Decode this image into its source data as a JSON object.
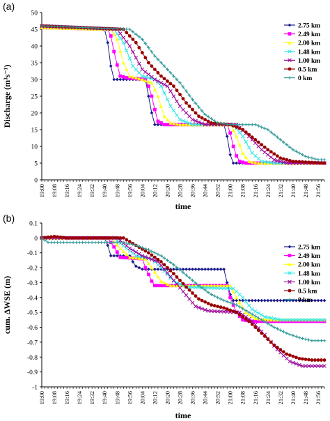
{
  "chart_data": [
    {
      "type": "line",
      "panel_label": "(a)",
      "xlabel": "time",
      "ylabel": "Discharge (m³s⁻¹)",
      "ylim": [
        0,
        50
      ],
      "yticks": [
        0,
        5,
        10,
        15,
        20,
        25,
        30,
        35,
        40,
        45,
        50
      ],
      "x_tick_labels": [
        "19:00",
        "19:08",
        "19:16",
        "19:24",
        "19:32",
        "19:40",
        "19:48",
        "19:56",
        "20:04",
        "20:12",
        "20:20",
        "20:28",
        "20:36",
        "20:44",
        "20:52",
        "21:00",
        "21:08",
        "21:16",
        "21:24",
        "21:32",
        "21:40",
        "21:48",
        "21:56"
      ],
      "grid": false,
      "legend_position": "top-right",
      "series": [
        {
          "name": "2.75 km",
          "color": "#1a1a8c",
          "marker": "diamond",
          "points": [
            [
              "19:00",
              45.5
            ],
            [
              "19:40",
              45
            ],
            [
              "19:42",
              41
            ],
            [
              "19:44",
              34
            ],
            [
              "19:46",
              30
            ],
            [
              "20:06",
              30
            ],
            [
              "20:08",
              25
            ],
            [
              "20:10",
              20
            ],
            [
              "20:12",
              16.5
            ],
            [
              "20:56",
              16.5
            ],
            [
              "20:58",
              13
            ],
            [
              "21:00",
              7.5
            ],
            [
              "21:02",
              5
            ],
            [
              "22:00",
              5
            ]
          ]
        },
        {
          "name": "2.49 km",
          "color": "#ff00ff",
          "marker": "square",
          "points": [
            [
              "19:00",
              45.5
            ],
            [
              "19:42",
              45
            ],
            [
              "19:44",
              43
            ],
            [
              "19:47",
              36
            ],
            [
              "19:50",
              31
            ],
            [
              "19:54",
              30.5
            ],
            [
              "20:06",
              30
            ],
            [
              "20:09",
              27
            ],
            [
              "20:12",
              21
            ],
            [
              "20:14",
              17.5
            ],
            [
              "20:18",
              16.5
            ],
            [
              "20:58",
              16.5
            ],
            [
              "21:00",
              14
            ],
            [
              "21:03",
              8
            ],
            [
              "21:06",
              5.5
            ],
            [
              "21:10",
              5
            ],
            [
              "22:00",
              5
            ]
          ]
        },
        {
          "name": "2.00 km",
          "color": "#ffff00",
          "marker": "triangle",
          "points": [
            [
              "19:00",
              45.5
            ],
            [
              "19:44",
              45
            ],
            [
              "19:48",
              42
            ],
            [
              "19:52",
              35
            ],
            [
              "19:56",
              31
            ],
            [
              "20:04",
              30
            ],
            [
              "20:10",
              29
            ],
            [
              "20:14",
              25
            ],
            [
              "20:18",
              19
            ],
            [
              "20:22",
              17
            ],
            [
              "20:28",
              16.5
            ],
            [
              "21:00",
              16.5
            ],
            [
              "21:04",
              13
            ],
            [
              "21:08",
              8
            ],
            [
              "21:12",
              5.5
            ],
            [
              "21:18",
              5
            ],
            [
              "22:00",
              5
            ]
          ]
        },
        {
          "name": "1.48 km",
          "color": "#33e6e6",
          "marker": "x",
          "points": [
            [
              "19:00",
              46
            ],
            [
              "19:46",
              45
            ],
            [
              "19:52",
              41
            ],
            [
              "19:58",
              34
            ],
            [
              "20:04",
              31
            ],
            [
              "20:12",
              30
            ],
            [
              "20:16",
              28
            ],
            [
              "20:22",
              22
            ],
            [
              "20:28",
              18
            ],
            [
              "20:36",
              16.5
            ],
            [
              "21:02",
              16.5
            ],
            [
              "21:08",
              13
            ],
            [
              "21:14",
              8
            ],
            [
              "21:20",
              5.5
            ],
            [
              "21:28",
              5
            ],
            [
              "22:00",
              5
            ]
          ]
        },
        {
          "name": "1.00 km",
          "color": "#990099",
          "marker": "x",
          "points": [
            [
              "19:00",
              46
            ],
            [
              "19:48",
              45
            ],
            [
              "19:56",
              40
            ],
            [
              "20:04",
              33
            ],
            [
              "20:12",
              30
            ],
            [
              "20:20",
              28
            ],
            [
              "20:28",
              22
            ],
            [
              "20:36",
              18
            ],
            [
              "20:44",
              16.5
            ],
            [
              "21:04",
              16.5
            ],
            [
              "21:12",
              13
            ],
            [
              "21:20",
              9
            ],
            [
              "21:28",
              6
            ],
            [
              "21:36",
              5
            ],
            [
              "22:00",
              5
            ]
          ]
        },
        {
          "name": "0.5 km",
          "color": "#990000",
          "marker": "circle",
          "points": [
            [
              "19:00",
              46
            ],
            [
              "19:52",
              45
            ],
            [
              "20:00",
              41
            ],
            [
              "20:08",
              35
            ],
            [
              "20:16",
              31
            ],
            [
              "20:24",
              28
            ],
            [
              "20:32",
              23
            ],
            [
              "20:40",
              19
            ],
            [
              "20:48",
              17
            ],
            [
              "21:00",
              16.5
            ],
            [
              "21:08",
              15
            ],
            [
              "21:16",
              12
            ],
            [
              "21:24",
              9
            ],
            [
              "21:32",
              6.5
            ],
            [
              "21:40",
              5.5
            ],
            [
              "22:00",
              5
            ]
          ]
        },
        {
          "name": "0 km",
          "color": "#339999",
          "marker": "plus",
          "points": [
            [
              "19:00",
              46
            ],
            [
              "19:56",
              45
            ],
            [
              "20:04",
              42
            ],
            [
              "20:12",
              37
            ],
            [
              "20:20",
              33
            ],
            [
              "20:28",
              29
            ],
            [
              "20:36",
              24
            ],
            [
              "20:44",
              19.5
            ],
            [
              "20:52",
              17
            ],
            [
              "21:00",
              16.5
            ],
            [
              "21:16",
              16.5
            ],
            [
              "21:24",
              15
            ],
            [
              "21:32",
              12
            ],
            [
              "21:40",
              9
            ],
            [
              "21:48",
              7
            ],
            [
              "21:56",
              6
            ],
            [
              "22:00",
              6
            ]
          ]
        }
      ]
    },
    {
      "type": "line",
      "panel_label": "(b)",
      "xlabel": "time",
      "ylabel": "cum. ΔWSE (m)",
      "ylim": [
        -1,
        0.1
      ],
      "yticks": [
        0.1,
        0,
        -0.1,
        -0.2,
        -0.3,
        -0.4,
        -0.5,
        -0.6,
        -0.7,
        -0.8,
        -0.9,
        -1
      ],
      "x_tick_labels": [
        "19:00",
        "19:08",
        "19:16",
        "19:24",
        "19:32",
        "19:40",
        "19:48",
        "19:56",
        "20:04",
        "20:12",
        "20:20",
        "20:28",
        "20:36",
        "20:44",
        "20:52",
        "21:00",
        "21:08",
        "21:16",
        "21:24",
        "21:32",
        "21:40",
        "21:48",
        "21:56"
      ],
      "grid": false,
      "legend_position": "top-right",
      "series": [
        {
          "name": "2.75 km",
          "color": "#1a1a8c",
          "marker": "diamond",
          "points": [
            [
              "19:00",
              0
            ],
            [
              "19:40",
              0
            ],
            [
              "19:42",
              -0.05
            ],
            [
              "19:44",
              -0.12
            ],
            [
              "19:56",
              -0.12
            ],
            [
              "19:58",
              -0.16
            ],
            [
              "20:00",
              -0.19
            ],
            [
              "20:04",
              -0.21
            ],
            [
              "20:56",
              -0.21
            ],
            [
              "20:58",
              -0.3
            ],
            [
              "21:00",
              -0.38
            ],
            [
              "21:02",
              -0.42
            ],
            [
              "22:00",
              -0.42
            ]
          ]
        },
        {
          "name": "2.49 km",
          "color": "#ff00ff",
          "marker": "square",
          "points": [
            [
              "19:00",
              0
            ],
            [
              "19:42",
              0
            ],
            [
              "19:46",
              -0.06
            ],
            [
              "19:50",
              -0.13
            ],
            [
              "20:04",
              -0.14
            ],
            [
              "20:06",
              -0.2
            ],
            [
              "20:10",
              -0.29
            ],
            [
              "20:12",
              -0.32
            ],
            [
              "20:58",
              -0.32
            ],
            [
              "21:00",
              -0.4
            ],
            [
              "21:04",
              -0.5
            ],
            [
              "21:08",
              -0.55
            ],
            [
              "21:14",
              -0.56
            ],
            [
              "22:00",
              -0.56
            ]
          ]
        },
        {
          "name": "2.00 km",
          "color": "#ffff00",
          "marker": "triangle",
          "points": [
            [
              "19:00",
              0
            ],
            [
              "19:44",
              0
            ],
            [
              "19:50",
              -0.07
            ],
            [
              "19:56",
              -0.13
            ],
            [
              "20:06",
              -0.14
            ],
            [
              "20:10",
              -0.2
            ],
            [
              "20:16",
              -0.29
            ],
            [
              "20:22",
              -0.32
            ],
            [
              "21:00",
              -0.32
            ],
            [
              "21:04",
              -0.4
            ],
            [
              "21:10",
              -0.5
            ],
            [
              "21:16",
              -0.54
            ],
            [
              "21:24",
              -0.55
            ],
            [
              "22:00",
              -0.55
            ]
          ]
        },
        {
          "name": "1.48 km",
          "color": "#33e6e6",
          "marker": "x",
          "points": [
            [
              "19:00",
              0
            ],
            [
              "19:46",
              0
            ],
            [
              "19:54",
              -0.07
            ],
            [
              "20:00",
              -0.12
            ],
            [
              "20:10",
              -0.14
            ],
            [
              "20:16",
              -0.2
            ],
            [
              "20:24",
              -0.29
            ],
            [
              "20:32",
              -0.33
            ],
            [
              "21:02",
              -0.34
            ],
            [
              "21:08",
              -0.4
            ],
            [
              "21:14",
              -0.48
            ],
            [
              "21:22",
              -0.53
            ],
            [
              "21:32",
              -0.55
            ],
            [
              "22:00",
              -0.55
            ]
          ]
        },
        {
          "name": "1.00 km",
          "color": "#990099",
          "marker": "x",
          "points": [
            [
              "19:00",
              0
            ],
            [
              "19:48",
              0
            ],
            [
              "19:56",
              -0.07
            ],
            [
              "20:04",
              -0.12
            ],
            [
              "20:14",
              -0.16
            ],
            [
              "20:22",
              -0.26
            ],
            [
              "20:30",
              -0.36
            ],
            [
              "20:38",
              -0.46
            ],
            [
              "20:46",
              -0.49
            ],
            [
              "21:06",
              -0.5
            ],
            [
              "21:14",
              -0.56
            ],
            [
              "21:22",
              -0.65
            ],
            [
              "21:30",
              -0.75
            ],
            [
              "21:38",
              -0.83
            ],
            [
              "21:46",
              -0.86
            ],
            [
              "22:00",
              -0.86
            ]
          ]
        },
        {
          "name": "0.5 km",
          "color": "#990000",
          "marker": "circle",
          "points": [
            [
              "19:00",
              0
            ],
            [
              "19:08",
              0.01
            ],
            [
              "19:16",
              0
            ],
            [
              "19:52",
              0
            ],
            [
              "20:00",
              -0.05
            ],
            [
              "20:08",
              -0.1
            ],
            [
              "20:16",
              -0.16
            ],
            [
              "20:24",
              -0.24
            ],
            [
              "20:32",
              -0.33
            ],
            [
              "20:40",
              -0.41
            ],
            [
              "20:48",
              -0.45
            ],
            [
              "20:56",
              -0.47
            ],
            [
              "21:04",
              -0.5
            ],
            [
              "21:12",
              -0.56
            ],
            [
              "21:20",
              -0.64
            ],
            [
              "21:28",
              -0.72
            ],
            [
              "21:36",
              -0.78
            ],
            [
              "21:44",
              -0.81
            ],
            [
              "21:52",
              -0.82
            ],
            [
              "22:00",
              -0.82
            ]
          ]
        },
        {
          "name": "0 km",
          "color": "#339999",
          "marker": "plus",
          "points": [
            [
              "19:00",
              0
            ],
            [
              "19:04",
              -0.03
            ],
            [
              "19:44",
              -0.03
            ],
            [
              "19:52",
              -0.03
            ],
            [
              "20:00",
              -0.05
            ],
            [
              "20:08",
              -0.08
            ],
            [
              "20:16",
              -0.12
            ],
            [
              "20:24",
              -0.18
            ],
            [
              "20:32",
              -0.25
            ],
            [
              "20:40",
              -0.32
            ],
            [
              "20:48",
              -0.38
            ],
            [
              "20:56",
              -0.42
            ],
            [
              "21:04",
              -0.45
            ],
            [
              "21:12",
              -0.5
            ],
            [
              "21:20",
              -0.55
            ],
            [
              "21:28",
              -0.6
            ],
            [
              "21:36",
              -0.64
            ],
            [
              "21:44",
              -0.67
            ],
            [
              "21:52",
              -0.69
            ],
            [
              "22:00",
              -0.69
            ]
          ]
        }
      ]
    }
  ]
}
